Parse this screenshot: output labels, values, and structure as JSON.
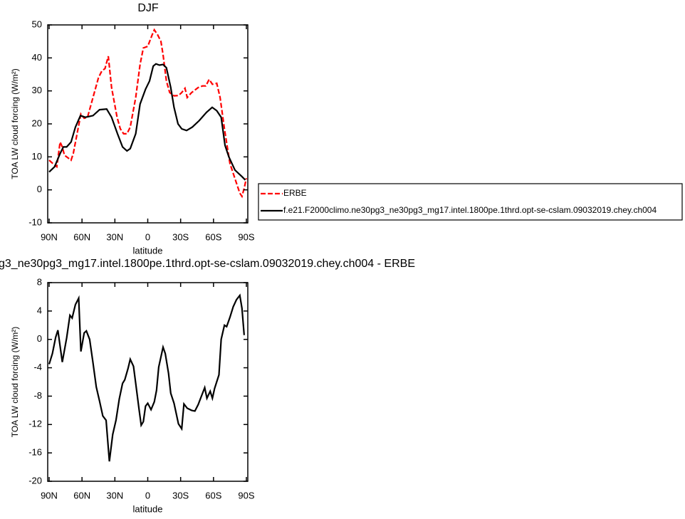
{
  "chart_data": [
    {
      "type": "line",
      "title": "DJF",
      "xlabel": "latitude",
      "ylabel": "TOA LW cloud forcing (W/m²)",
      "xlim": [
        90,
        -90
      ],
      "ylim": [
        -10,
        50
      ],
      "xticks": [
        {
          "value": 90,
          "label": "90N"
        },
        {
          "value": 60,
          "label": "60N"
        },
        {
          "value": 30,
          "label": "30N"
        },
        0,
        {
          "value": -30,
          "label": "30S"
        },
        {
          "value": -60,
          "label": "60S"
        },
        {
          "value": -90,
          "label": "90S"
        }
      ],
      "yticks": [
        -10,
        0,
        10,
        20,
        30,
        40,
        50
      ],
      "legend": "right",
      "series": [
        {
          "name": "ERBE",
          "color": "#ff0000",
          "dash": true,
          "x": [
            90,
            85,
            83,
            80,
            78,
            76,
            72,
            70,
            68,
            61,
            58,
            55,
            50,
            45,
            42,
            39,
            36,
            33,
            28,
            25,
            22,
            19,
            16,
            11,
            7,
            4,
            0,
            -4,
            -6,
            -9,
            -12,
            -14,
            -17,
            -20,
            -24,
            -28,
            -31,
            -34,
            -36,
            -40,
            -46,
            -50,
            -53,
            -56,
            -59,
            -63,
            -66,
            -70,
            -75,
            -80,
            -84,
            -86,
            -88,
            -90
          ],
          "values": [
            9,
            7.5,
            7,
            14.5,
            13,
            10.5,
            9.5,
            9,
            11,
            23,
            21.7,
            22,
            28,
            34,
            36,
            36.8,
            40.5,
            31,
            22,
            18.5,
            17,
            17,
            19,
            28,
            38,
            43,
            43.5,
            47,
            48.5,
            47,
            45,
            41,
            33,
            29.5,
            28.5,
            28.6,
            29.5,
            30.8,
            28,
            29.5,
            31,
            31.5,
            31.5,
            33.5,
            32,
            32.3,
            28,
            18.5,
            8,
            3,
            -1,
            -2,
            0.5,
            3.5
          ]
        },
        {
          "name": "f.e21.F2000climo.ne30pg3_ne30pg3_mg17.intel.1800pe.1thrd.opt-se-cslam.09032019.chey.ch004",
          "color": "#000000",
          "dash": false,
          "x": [
            90,
            85,
            80,
            77,
            74,
            70,
            66,
            61.4,
            57,
            50,
            44,
            37.5,
            33,
            27.6,
            23,
            19,
            16,
            11,
            7,
            2,
            -1.6,
            -5,
            -7.5,
            -10.7,
            -14,
            -17,
            -21,
            -24,
            -27.6,
            -31,
            -35.4,
            -40.6,
            -47,
            -53.6,
            -58.8,
            -63,
            -67,
            -70.5,
            -74,
            -79.6,
            -86,
            -89
          ],
          "values": [
            5.4,
            7,
            11,
            13,
            13,
            14.5,
            19,
            22.5,
            22,
            22.5,
            24.3,
            24.5,
            22,
            17,
            13,
            11.8,
            12.5,
            17,
            26,
            30.5,
            33,
            37.5,
            38.2,
            37.8,
            38,
            37,
            31,
            25,
            20,
            18.5,
            18,
            19,
            21,
            23.5,
            25,
            24,
            22,
            13.5,
            10,
            6,
            4,
            3
          ]
        }
      ]
    },
    {
      "type": "line",
      "title": "g3_ne30pg3_mg17.intel.1800pe.1thrd.opt-se-cslam.09032019.chey.ch004 - ERBE",
      "xlabel": "latitude",
      "ylabel": "TOA LW cloud forcing (W/m²)",
      "xlim": [
        90,
        -90
      ],
      "ylim": [
        -20,
        8
      ],
      "xticks": [
        {
          "value": 90,
          "label": "90N"
        },
        {
          "value": 60,
          "label": "60N"
        },
        {
          "value": 30,
          "label": "30N"
        },
        0,
        {
          "value": -30,
          "label": "30S"
        },
        {
          "value": -60,
          "label": "60S"
        },
        {
          "value": -90,
          "label": "90S"
        }
      ],
      "yticks": [
        -20,
        -16,
        -12,
        -8,
        -4,
        0,
        4,
        8
      ],
      "series": [
        {
          "color": "#000000",
          "dash": false,
          "x": [
            90,
            87,
            84,
            82,
            78,
            74,
            71,
            69,
            66,
            63,
            61,
            58,
            56,
            53,
            50,
            47,
            44,
            41,
            38,
            35,
            32,
            29,
            26,
            23,
            21,
            18,
            16,
            13,
            11,
            8,
            6,
            4,
            2,
            0,
            -3,
            -6,
            -8,
            -10,
            -14,
            -16,
            -19,
            -21,
            -24,
            -28,
            -31,
            -33,
            -36,
            -40,
            -43,
            -46,
            -49,
            -52,
            -54,
            -57,
            -59,
            -61,
            -65,
            -67,
            -70,
            -72,
            -75,
            -78,
            -81,
            -84,
            -86,
            -88
          ],
          "values": [
            -3.5,
            -2,
            0.3,
            1.3,
            -3.2,
            0.2,
            3.4,
            3,
            4.9,
            5.8,
            -1.7,
            0.9,
            1.2,
            0,
            -3.3,
            -6.7,
            -8.7,
            -10.8,
            -11.4,
            -17.2,
            -13.4,
            -11.4,
            -8.4,
            -6.2,
            -5.7,
            -4.1,
            -2.8,
            -3.8,
            -6.2,
            -9.8,
            -12.1,
            -11.6,
            -9.4,
            -9,
            -9.9,
            -8.8,
            -7.2,
            -3.9,
            -1.1,
            -2,
            -4.8,
            -7.6,
            -9,
            -11.9,
            -12.6,
            -9.1,
            -9.7,
            -10,
            -10.1,
            -9.2,
            -8,
            -6.8,
            -8.3,
            -7.3,
            -8.3,
            -6.9,
            -5,
            0,
            2,
            1.8,
            3.1,
            4.6,
            5.6,
            6.2,
            4.4,
            0.6
          ]
        }
      ]
    }
  ]
}
